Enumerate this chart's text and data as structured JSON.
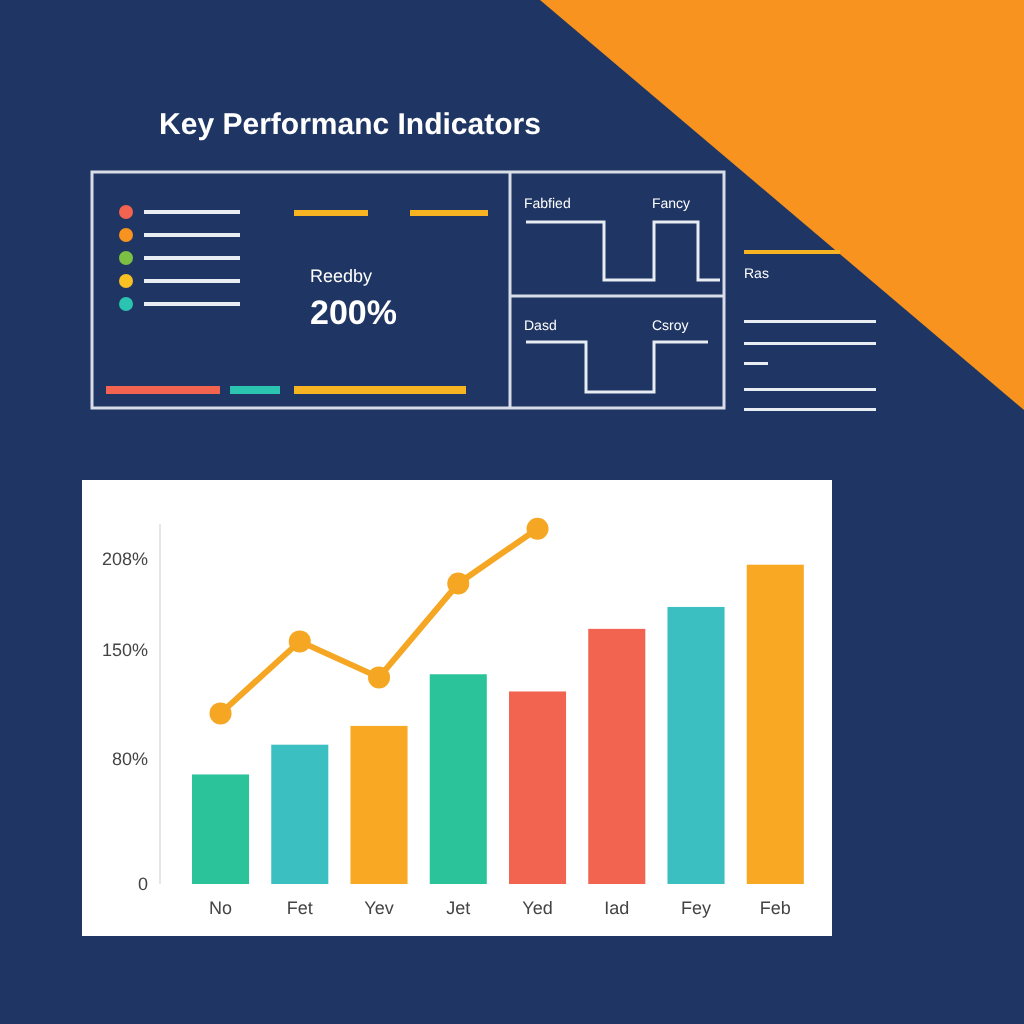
{
  "chart_data": {
    "type": "bar",
    "title": "Key Performanc Indicators",
    "annotations": [
      "Reedby",
      "200%",
      "Fabfied",
      "Fancy",
      "Dasd",
      "Csroy",
      "Ras"
    ],
    "categories": [
      "No",
      "Fet",
      "Yev",
      "Jet",
      "Yed",
      "Iad",
      "Fey",
      "Feb"
    ],
    "series": [
      {
        "values": [
          70,
          89,
          101,
          134,
          123,
          163,
          177,
          204
        ],
        "colors": [
          "#2bc49a",
          "#3bbfc0",
          "#f8a823",
          "#2bc49a",
          "#f26450",
          "#f26450",
          "#3bbfc0",
          "#f8a823"
        ]
      },
      {
        "type": "line",
        "color": "#f5a623",
        "values": [
          109,
          155,
          132,
          192,
          227,
          null,
          null,
          null
        ],
        "marker": "circle"
      }
    ],
    "ylim": [
      0,
      230
    ],
    "yticks": [
      0,
      {
        "value": 80,
        "label": "80%"
      },
      {
        "value": 150,
        "label": "150%"
      },
      {
        "value": 208,
        "label": "208%"
      }
    ],
    "grid": false
  }
}
